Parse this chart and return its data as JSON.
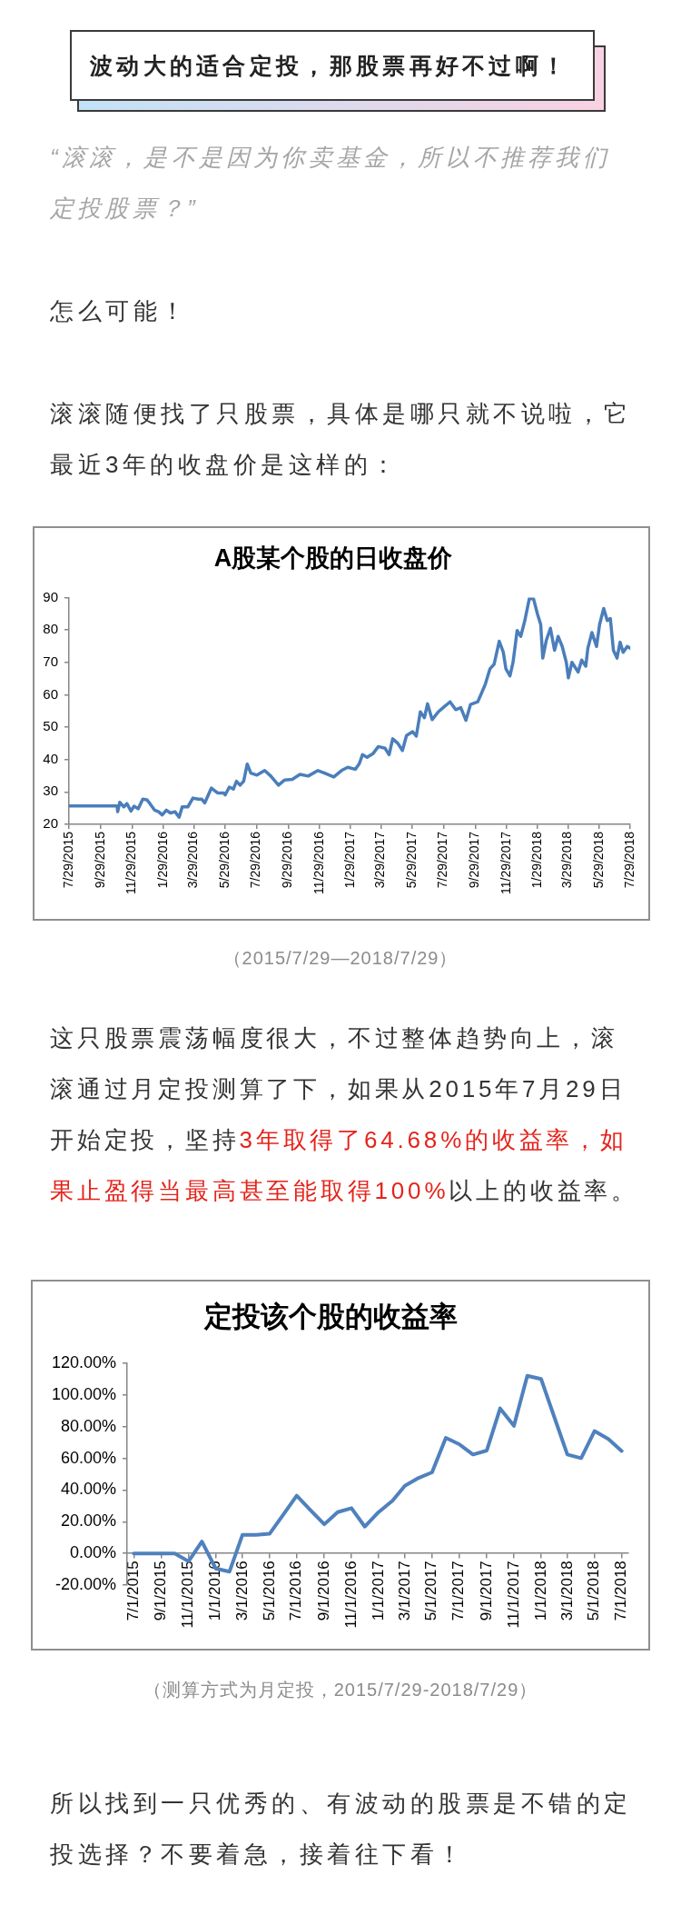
{
  "chart_data": [
    {
      "type": "other",
      "title": "波动大的适合定投，那股票再好不过啊！",
      "subtitle": "“滚滚，是不是因为你卖基金，所以不推荐我们定投股票？”",
      "annotations": [
        "怎么可能！",
        "滚滚随便找了只股票，具体是哪只就不说啦，它最近3年的收盘价是这样的："
      ]
    },
    {
      "type": "line",
      "title": "A股某个股的日收盘价",
      "color": "#4a7ebb",
      "marker": "none",
      "grid": false,
      "x": [
        "2015-07-29",
        "2015-10-31",
        "2015-11-01",
        "2015-11-05",
        "2015-11-13",
        "2015-11-19",
        "2015-11-27",
        "2015-12-03",
        "2015-12-11",
        "2015-12-20",
        "2015-12-28",
        "2016-01-03",
        "2016-01-12",
        "2016-01-20",
        "2016-01-27",
        "2016-02-04",
        "2016-02-12",
        "2016-02-21",
        "2016-02-29",
        "2016-03-06",
        "2016-03-17",
        "2016-03-27",
        "2016-04-06",
        "2016-04-13",
        "2016-04-19",
        "2016-05-02",
        "2016-05-14",
        "2016-05-26",
        "2016-05-29",
        "2016-06-06",
        "2016-06-14",
        "2016-06-20",
        "2016-06-27",
        "2016-07-04",
        "2016-07-11",
        "2016-07-18",
        "2016-07-30",
        "2016-08-14",
        "2016-08-26",
        "2016-09-10",
        "2016-09-22",
        "2016-10-07",
        "2016-10-22",
        "2016-11-07",
        "2016-11-26",
        "2016-12-08",
        "2016-12-27",
        "2017-01-11",
        "2017-01-23",
        "2017-02-07",
        "2017-02-15",
        "2017-02-21",
        "2017-03-02",
        "2017-03-14",
        "2017-03-24",
        "2017-04-06",
        "2017-04-14",
        "2017-04-21",
        "2017-05-01",
        "2017-05-10",
        "2017-05-18",
        "2017-05-30",
        "2017-06-06",
        "2017-06-14",
        "2017-06-22",
        "2017-06-28",
        "2017-07-07",
        "2017-07-19",
        "2017-07-30",
        "2017-08-11",
        "2017-08-22",
        "2017-09-01",
        "2017-09-11",
        "2017-09-20",
        "2017-10-04",
        "2017-10-11",
        "2017-10-19",
        "2017-10-28",
        "2017-11-05",
        "2017-11-15",
        "2017-11-23",
        "2017-11-28",
        "2017-12-06",
        "2017-12-12",
        "2017-12-20",
        "2017-12-27",
        "2018-01-04",
        "2018-01-13",
        "2018-01-21",
        "2018-01-29",
        "2018-02-04",
        "2018-02-08",
        "2018-02-15",
        "2018-02-23",
        "2018-03-03",
        "2018-03-10",
        "2018-03-18",
        "2018-03-26",
        "2018-03-30",
        "2018-04-06",
        "2018-04-18",
        "2018-04-25",
        "2018-05-03",
        "2018-05-07",
        "2018-05-15",
        "2018-05-24",
        "2018-05-30",
        "2018-06-07",
        "2018-06-14",
        "2018-06-20",
        "2018-06-26",
        "2018-07-03",
        "2018-07-09",
        "2018-07-15",
        "2018-07-23",
        "2018-07-29"
      ],
      "values": [
        25.7,
        25.7,
        23.9,
        26.8,
        25.4,
        26.4,
        24.1,
        25.6,
        24.8,
        27.8,
        27.6,
        26.4,
        24.4,
        23.9,
        22.9,
        24.4,
        23.5,
        23.9,
        22.2,
        25.4,
        25.4,
        28.1,
        27.8,
        27.8,
        26.6,
        31.2,
        29.7,
        29.7,
        29.1,
        31.5,
        30.9,
        33.3,
        32.1,
        33.3,
        38.6,
        35.8,
        35.2,
        36.6,
        34.9,
        32.1,
        33.7,
        33.9,
        35.4,
        34.9,
        36.6,
        35.9,
        34.6,
        36.6,
        37.6,
        37,
        38.8,
        41.5,
        40.7,
        41.9,
        44,
        43.5,
        41.5,
        46.4,
        45,
        42.8,
        47.4,
        48.6,
        47.2,
        54.7,
        52.9,
        57.2,
        52.3,
        54.7,
        56.2,
        57.8,
        55.4,
        56,
        52.1,
        57,
        57.8,
        60.3,
        63.3,
        68,
        69.4,
        76.5,
        73.1,
        68,
        65.8,
        70,
        79.8,
        78,
        82.9,
        89.8,
        89.6,
        84.7,
        81.7,
        71.3,
        76.8,
        80.5,
        73.7,
        78,
        74.9,
        70,
        65.2,
        70,
        67,
        70.7,
        68.8,
        74.3,
        79.2,
        74.9,
        81.7,
        86.6,
        82.9,
        83.5,
        73.7,
        71.3,
        76.2,
        73.1,
        74.9,
        74.3
      ],
      "xlim": [
        "2015-07-29",
        "2018-07-29"
      ],
      "xticks": [
        {
          "value": "2015-07-29",
          "label": "7/29/2015"
        },
        {
          "value": "2015-09-29",
          "label": "9/29/2015"
        },
        {
          "value": "2015-11-29",
          "label": "11/29/2015"
        },
        {
          "value": "2016-01-29",
          "label": "1/29/2016"
        },
        {
          "value": "2016-03-29",
          "label": "3/29/2016"
        },
        {
          "value": "2016-05-29",
          "label": "5/29/2016"
        },
        {
          "value": "2016-07-29",
          "label": "7/29/2016"
        },
        {
          "value": "2016-09-29",
          "label": "9/29/2016"
        },
        {
          "value": "2016-11-29",
          "label": "11/29/2016"
        },
        {
          "value": "2017-01-29",
          "label": "1/29/2017"
        },
        {
          "value": "2017-03-29",
          "label": "3/29/2017"
        },
        {
          "value": "2017-05-29",
          "label": "5/29/2017"
        },
        {
          "value": "2017-07-29",
          "label": "7/29/2017"
        },
        {
          "value": "2017-09-29",
          "label": "9/29/2017"
        },
        {
          "value": "2017-11-29",
          "label": "11/29/2017"
        },
        {
          "value": "2018-01-29",
          "label": "1/29/2018"
        },
        {
          "value": "2018-03-29",
          "label": "3/29/2018"
        },
        {
          "value": "2018-05-29",
          "label": "5/29/2018"
        },
        {
          "value": "2018-07-29",
          "label": "7/29/2018"
        }
      ],
      "ylim": [
        20,
        90
      ],
      "yticks": [
        20,
        30,
        40,
        50,
        60,
        70,
        80,
        90
      ],
      "annotations": [
        "（2015/7/29—2018/7/29）"
      ]
    },
    {
      "type": "other",
      "annotations": [
        "这只股票震荡幅度很大，不过整体趋势向上，滚",
        "滚通过月定投测算了下，如果从2015年7月29日",
        "开始定投，坚持",
        "3年取得了64.68%的收益率，如",
        "果止盈得当最高甚至能取得100%",
        "以上的收益率。"
      ],
      "colors": [
        "#333333",
        "#333333",
        "#333333",
        "#e5231b",
        "#e5231b",
        "#333333"
      ]
    },
    {
      "type": "line",
      "title": "定投该个股的收益率",
      "color": "#4f81bd",
      "marker": "none",
      "grid": false,
      "x": [
        "2015-07-01",
        "2015-08-01",
        "2015-09-01",
        "2015-10-01",
        "2015-11-01",
        "2015-12-01",
        "2016-01-01",
        "2016-02-01",
        "2016-03-01",
        "2016-04-01",
        "2016-05-01",
        "2016-06-01",
        "2016-07-01",
        "2016-08-01",
        "2016-09-01",
        "2016-10-01",
        "2016-11-01",
        "2016-12-01",
        "2017-01-01",
        "2017-02-01",
        "2017-03-01",
        "2017-04-01",
        "2017-05-01",
        "2017-06-01",
        "2017-07-01",
        "2017-08-01",
        "2017-09-01",
        "2017-10-01",
        "2017-11-01",
        "2017-12-01",
        "2018-01-01",
        "2018-02-01",
        "2018-03-01",
        "2018-04-01",
        "2018-05-01",
        "2018-06-01",
        "2018-07-01"
      ],
      "values": [
        0,
        0,
        0,
        0,
        -5,
        7.5,
        -9.5,
        -11.5,
        11.7,
        11.7,
        12.4,
        24.6,
        36.5,
        27.3,
        18.4,
        26.1,
        28.6,
        16.9,
        26.1,
        33.3,
        42.7,
        47.7,
        51.2,
        73,
        69,
        62.5,
        65,
        91.6,
        80.6,
        112.2,
        110.2,
        85.1,
        62.5,
        60.2,
        77.3,
        72.3,
        64.7
      ],
      "xlim": [
        "2015-06-16",
        "2018-07-16"
      ],
      "xticks": [
        {
          "value": "2015-07-01",
          "label": "7/1/2015"
        },
        {
          "value": "2015-09-01",
          "label": "9/1/2015"
        },
        {
          "value": "2015-11-01",
          "label": "11/1/2015"
        },
        {
          "value": "2016-01-01",
          "label": "1/1/2016"
        },
        {
          "value": "2016-03-01",
          "label": "3/1/2016"
        },
        {
          "value": "2016-05-01",
          "label": "5/1/2016"
        },
        {
          "value": "2016-07-01",
          "label": "7/1/2016"
        },
        {
          "value": "2016-09-01",
          "label": "9/1/2016"
        },
        {
          "value": "2016-11-01",
          "label": "11/1/2016"
        },
        {
          "value": "2017-01-01",
          "label": "1/1/2017"
        },
        {
          "value": "2017-03-01",
          "label": "3/1/2017"
        },
        {
          "value": "2017-05-01",
          "label": "5/1/2017"
        },
        {
          "value": "2017-07-01",
          "label": "7/1/2017"
        },
        {
          "value": "2017-09-01",
          "label": "9/1/2017"
        },
        {
          "value": "2017-11-01",
          "label": "11/1/2017"
        },
        {
          "value": "2018-01-01",
          "label": "1/1/2018"
        },
        {
          "value": "2018-03-01",
          "label": "3/1/2018"
        },
        {
          "value": "2018-05-01",
          "label": "5/1/2018"
        },
        {
          "value": "2018-07-01",
          "label": "7/1/2018"
        }
      ],
      "ylim": [
        -20,
        120
      ],
      "yticks": [
        {
          "value": -20,
          "label": "-20.00%"
        },
        {
          "value": 0,
          "label": "0.00%"
        },
        {
          "value": 20,
          "label": "20.00%"
        },
        {
          "value": 40,
          "label": "40.00%"
        },
        {
          "value": 60,
          "label": "60.00%"
        },
        {
          "value": 80,
          "label": "80.00%"
        },
        {
          "value": 100,
          "label": "100.00%"
        },
        {
          "value": 120,
          "label": "120.00%"
        }
      ],
      "annotations": [
        "（测算方式为月定投，2015/7/29-2018/7/29）"
      ]
    },
    {
      "type": "other",
      "annotations": [
        "所以找到一只优秀的、有波动的股票是不错的定投选择？不要着急，接着往下看！"
      ]
    }
  ]
}
